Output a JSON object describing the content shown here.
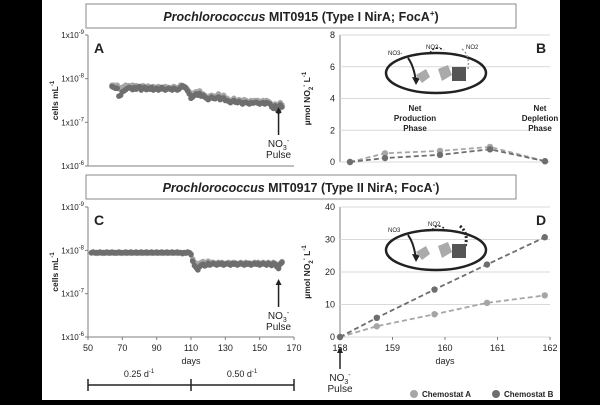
{
  "headers": {
    "top": {
      "name": "Prochlorococcus",
      "rest": " MIT0915 (Type I NirA; FocA",
      "sup": "+",
      "end": ")"
    },
    "bottom": {
      "name": "Prochlorococcus",
      "rest": " MIT0917 (Type II NirA; FocA",
      "sup": "-",
      "end": ")"
    }
  },
  "colors": {
    "chemostat_a": "#a6a6a6",
    "chemostat_b": "#6e6e6e",
    "axis": "#7f7f7f",
    "gridline": "#d9d9d9"
  },
  "chart_data": [
    {
      "panel": "A",
      "type": "scatter",
      "ylabel": "cells mL",
      "ylabel_sup": "-1",
      "ylog": true,
      "yticks": [
        {
          "base": "1x10",
          "exp": "-9"
        },
        {
          "base": "1x10",
          "exp": "-8"
        },
        {
          "base": "1x10",
          "exp": "-7"
        },
        {
          "base": "1x10",
          "exp": "-6"
        }
      ],
      "xlim": [
        50,
        170
      ],
      "ylim_log10_cells": [
        6,
        9
      ],
      "annotation": {
        "line1": "NO",
        "sub": "3",
        "sup": "-",
        "line2": "Pulse",
        "x": 161
      },
      "series": [
        {
          "name": "Chemostat A",
          "x": [
            64,
            65,
            66,
            67,
            68,
            69,
            70,
            71,
            72,
            73,
            74,
            75,
            76,
            77,
            78,
            79,
            80,
            81,
            82,
            83,
            84,
            85,
            86,
            87,
            88,
            89,
            90,
            91,
            92,
            93,
            94,
            95,
            96,
            97,
            98,
            99,
            100,
            101,
            102,
            103,
            104,
            105,
            106,
            107,
            108,
            109,
            110,
            111,
            112,
            113,
            114,
            115,
            116,
            117,
            118,
            119,
            120,
            121,
            122,
            123,
            124,
            125,
            126,
            127,
            128,
            129,
            130,
            131,
            132,
            133,
            134,
            135,
            136,
            137,
            138,
            139,
            140,
            141,
            142,
            143,
            144,
            145,
            146,
            147,
            148,
            149,
            150,
            151,
            152,
            153,
            154,
            155,
            156,
            157,
            158,
            159,
            160,
            161,
            162,
            163
          ],
          "y": [
            7.85,
            7.85,
            7.84,
            7.85,
            7.8,
            7.75,
            7.8,
            7.82,
            7.85,
            7.83,
            7.84,
            7.82,
            7.85,
            7.83,
            7.84,
            7.8,
            7.82,
            7.78,
            7.84,
            7.82,
            7.8,
            7.83,
            7.78,
            7.8,
            7.82,
            7.78,
            7.8,
            7.82,
            7.78,
            7.8,
            7.8,
            7.82,
            7.78,
            7.8,
            7.78,
            7.8,
            7.82,
            7.8,
            7.78,
            7.8,
            7.85,
            7.82,
            7.8,
            7.8,
            7.75,
            7.7,
            7.62,
            7.65,
            7.68,
            7.7,
            7.68,
            7.72,
            7.65,
            7.65,
            7.62,
            7.58,
            7.58,
            7.6,
            7.62,
            7.6,
            7.6,
            7.6,
            7.65,
            7.58,
            7.6,
            7.62,
            7.55,
            7.55,
            7.52,
            7.5,
            7.5,
            7.55,
            7.5,
            7.48,
            7.52,
            7.5,
            7.48,
            7.52,
            7.5,
            7.48,
            7.45,
            7.5,
            7.48,
            7.5,
            7.5,
            7.5,
            7.45,
            7.48,
            7.5,
            7.46,
            7.5,
            7.48,
            7.45,
            7.4,
            7.38,
            7.42,
            7.35,
            7.3,
            7.45,
            7.4
          ]
        },
        {
          "name": "Chemostat B",
          "x": [
            64,
            65,
            66,
            67,
            68,
            69,
            70,
            71,
            72,
            73,
            74,
            75,
            76,
            77,
            78,
            79,
            80,
            81,
            82,
            83,
            84,
            85,
            86,
            87,
            88,
            89,
            90,
            91,
            92,
            93,
            94,
            95,
            96,
            97,
            98,
            99,
            100,
            101,
            102,
            103,
            104,
            105,
            106,
            107,
            108,
            109,
            110,
            111,
            112,
            113,
            114,
            115,
            116,
            117,
            118,
            119,
            120,
            121,
            122,
            123,
            124,
            125,
            126,
            127,
            128,
            129,
            130,
            131,
            132,
            133,
            134,
            135,
            136,
            137,
            138,
            139,
            140,
            141,
            142,
            143,
            144,
            145,
            146,
            147,
            148,
            149,
            150,
            151,
            152,
            153,
            154,
            155,
            156,
            157,
            158,
            159,
            160,
            161,
            162,
            163
          ],
          "y": [
            7.82,
            7.8,
            7.78,
            7.78,
            7.6,
            7.62,
            7.7,
            7.72,
            7.75,
            7.78,
            7.8,
            7.78,
            7.75,
            7.8,
            7.76,
            7.8,
            7.82,
            7.74,
            7.78,
            7.8,
            7.75,
            7.78,
            7.76,
            7.8,
            7.74,
            7.76,
            7.78,
            7.74,
            7.76,
            7.8,
            7.76,
            7.74,
            7.76,
            7.78,
            7.76,
            7.74,
            7.78,
            7.76,
            7.74,
            7.76,
            7.8,
            7.84,
            7.82,
            7.78,
            7.72,
            7.65,
            7.55,
            7.58,
            7.62,
            7.65,
            7.62,
            7.66,
            7.6,
            7.62,
            7.58,
            7.55,
            7.52,
            7.55,
            7.58,
            7.55,
            7.54,
            7.56,
            7.58,
            7.52,
            7.55,
            7.56,
            7.5,
            7.5,
            7.48,
            7.45,
            7.48,
            7.5,
            7.46,
            7.45,
            7.48,
            7.46,
            7.42,
            7.45,
            7.46,
            7.44,
            7.42,
            7.45,
            7.44,
            7.45,
            7.46,
            7.44,
            7.42,
            7.44,
            7.45,
            7.42,
            7.45,
            7.44,
            7.42,
            7.35,
            7.32,
            7.38,
            7.3,
            7.25,
            7.4,
            7.35
          ]
        }
      ]
    },
    {
      "panel": "B",
      "type": "line",
      "ylabel": "µmol NO",
      "ylabel_sub": "2",
      "ylabel_sup": "-",
      "ylabel_tail": " L",
      "ylabel_sup2": "-1",
      "yticks": [
        0,
        2,
        4,
        6,
        8
      ],
      "ylim": [
        0,
        8
      ],
      "xlim": [
        157.8,
        162
      ],
      "annotations": [
        {
          "text": "Net",
          "text2": "Production",
          "text3": "Phase",
          "x": 159.3
        },
        {
          "text": "Net",
          "text2": "Depletion",
          "text3": "Phase",
          "x": 161.8
        }
      ],
      "series": [
        {
          "name": "Chemostat A",
          "x": [
            158,
            158.7,
            159.8,
            160.8,
            161.9
          ],
          "y": [
            0,
            0.55,
            0.7,
            0.95,
            0.05
          ]
        },
        {
          "name": "Chemostat B",
          "x": [
            158,
            158.7,
            159.8,
            160.8,
            161.9
          ],
          "y": [
            0,
            0.25,
            0.45,
            0.8,
            0.05
          ]
        }
      ]
    },
    {
      "panel": "C",
      "type": "scatter",
      "ylabel": "cells mL",
      "ylabel_sup": "-1",
      "ylog": true,
      "yticks": [
        {
          "base": "1x10",
          "exp": "-9"
        },
        {
          "base": "1x10",
          "exp": "-8"
        },
        {
          "base": "1x10",
          "exp": "-7"
        },
        {
          "base": "1x10",
          "exp": "-6"
        }
      ],
      "xticks": [
        50,
        70,
        90,
        110,
        130,
        150,
        170
      ],
      "xlabel": "days",
      "xlim": [
        50,
        170
      ],
      "ylim_log10_cells": [
        6,
        9
      ],
      "annotation": {
        "line1": "NO",
        "sub": "3",
        "sup": "-",
        "line2": "Pulse",
        "x": 161
      },
      "series": [
        {
          "name": "Chemostat A",
          "x": [
            52,
            53,
            54,
            55,
            56,
            57,
            58,
            59,
            60,
            61,
            62,
            63,
            64,
            65,
            66,
            67,
            68,
            69,
            70,
            71,
            72,
            73,
            74,
            75,
            76,
            77,
            78,
            79,
            80,
            81,
            82,
            83,
            84,
            85,
            86,
            87,
            88,
            89,
            90,
            91,
            92,
            93,
            94,
            95,
            96,
            97,
            98,
            99,
            100,
            101,
            102,
            103,
            104,
            105,
            106,
            107,
            108,
            109,
            110,
            111,
            112,
            113,
            114,
            115,
            116,
            117,
            118,
            119,
            120,
            121,
            122,
            123,
            124,
            125,
            126,
            127,
            128,
            129,
            130,
            131,
            132,
            133,
            134,
            135,
            136,
            137,
            138,
            139,
            140,
            141,
            142,
            143,
            144,
            145,
            146,
            147,
            148,
            149,
            150,
            151,
            152,
            153,
            154,
            155,
            156,
            157,
            158,
            159,
            160,
            161,
            162,
            163
          ],
          "y": [
            7.95,
            7.95,
            7.95,
            7.93,
            7.95,
            7.94,
            7.95,
            7.93,
            7.95,
            7.94,
            7.95,
            7.93,
            7.94,
            7.95,
            7.93,
            7.95,
            7.94,
            7.93,
            7.95,
            7.94,
            7.93,
            7.95,
            7.94,
            7.93,
            7.95,
            7.94,
            7.93,
            7.95,
            7.94,
            7.93,
            7.95,
            7.94,
            7.93,
            7.95,
            7.94,
            7.93,
            7.95,
            7.94,
            7.93,
            7.95,
            7.94,
            7.93,
            7.95,
            7.94,
            7.93,
            7.95,
            7.94,
            7.93,
            7.95,
            7.94,
            7.93,
            7.95,
            7.94,
            7.92,
            7.94,
            7.93,
            7.95,
            7.94,
            7.92,
            7.8,
            7.72,
            7.7,
            7.65,
            7.7,
            7.72,
            7.74,
            7.7,
            7.72,
            7.75,
            7.7,
            7.72,
            7.72,
            7.7,
            7.7,
            7.72,
            7.7,
            7.72,
            7.7,
            7.68,
            7.7,
            7.72,
            7.7,
            7.7,
            7.72,
            7.7,
            7.68,
            7.7,
            7.72,
            7.7,
            7.7,
            7.72,
            7.7,
            7.7,
            7.68,
            7.7,
            7.72,
            7.7,
            7.72,
            7.7,
            7.7,
            7.72,
            7.7,
            7.68,
            7.72,
            7.7,
            7.68,
            7.72,
            7.7,
            7.66,
            7.62,
            7.7,
            7.74
          ]
        },
        {
          "name": "Chemostat B",
          "x": [
            52,
            53,
            54,
            55,
            56,
            57,
            58,
            59,
            60,
            61,
            62,
            63,
            64,
            65,
            66,
            67,
            68,
            69,
            70,
            71,
            72,
            73,
            74,
            75,
            76,
            77,
            78,
            79,
            80,
            81,
            82,
            83,
            84,
            85,
            86,
            87,
            88,
            89,
            90,
            91,
            92,
            93,
            94,
            95,
            96,
            97,
            98,
            99,
            100,
            101,
            102,
            103,
            104,
            105,
            106,
            107,
            108,
            109,
            110,
            111,
            112,
            113,
            114,
            115,
            116,
            117,
            118,
            119,
            120,
            121,
            122,
            123,
            124,
            125,
            126,
            127,
            128,
            129,
            130,
            131,
            132,
            133,
            134,
            135,
            136,
            137,
            138,
            139,
            140,
            141,
            142,
            143,
            144,
            145,
            146,
            147,
            148,
            149,
            150,
            151,
            152,
            153,
            154,
            155,
            156,
            157,
            158,
            159,
            160,
            161,
            162,
            163
          ],
          "y": [
            7.94,
            7.96,
            7.94,
            7.95,
            7.94,
            7.96,
            7.94,
            7.95,
            7.94,
            7.96,
            7.94,
            7.95,
            7.96,
            7.94,
            7.95,
            7.94,
            7.96,
            7.95,
            7.94,
            7.95,
            7.96,
            7.94,
            7.95,
            7.96,
            7.94,
            7.95,
            7.96,
            7.94,
            7.95,
            7.96,
            7.94,
            7.95,
            7.96,
            7.94,
            7.95,
            7.96,
            7.94,
            7.95,
            7.96,
            7.94,
            7.95,
            7.96,
            7.94,
            7.95,
            7.96,
            7.94,
            7.95,
            7.96,
            7.94,
            7.95,
            7.96,
            7.94,
            7.95,
            7.93,
            7.95,
            7.94,
            7.96,
            7.95,
            7.9,
            7.75,
            7.65,
            7.6,
            7.55,
            7.62,
            7.66,
            7.68,
            7.64,
            7.66,
            7.7,
            7.66,
            7.68,
            7.7,
            7.68,
            7.66,
            7.7,
            7.68,
            7.7,
            7.66,
            7.68,
            7.7,
            7.68,
            7.66,
            7.7,
            7.68,
            7.7,
            7.66,
            7.68,
            7.7,
            7.68,
            7.66,
            7.7,
            7.68,
            7.7,
            7.66,
            7.68,
            7.7,
            7.68,
            7.7,
            7.66,
            7.68,
            7.7,
            7.68,
            7.66,
            7.7,
            7.68,
            7.65,
            7.7,
            7.68,
            7.62,
            7.58,
            7.68,
            7.72
          ]
        }
      ]
    },
    {
      "panel": "D",
      "type": "line",
      "ylabel": "µmol NO",
      "ylabel_sub": "2",
      "ylabel_sup": "-",
      "ylabel_tail": " L",
      "ylabel_sup2": "-1",
      "yticks": [
        0,
        10,
        20,
        30,
        40
      ],
      "ylim": [
        0,
        40
      ],
      "xticks": [
        158,
        159,
        160,
        161,
        162
      ],
      "xlabel": "days",
      "xlim": [
        158,
        162
      ],
      "annotation": {
        "line1": "NO",
        "sub": "3",
        "sup": "-",
        "line2": "Pulse",
        "x": 158
      },
      "series": [
        {
          "name": "Chemostat A",
          "x": [
            158,
            158.7,
            159.8,
            160.8,
            161.9
          ],
          "y": [
            0,
            3.3,
            7,
            10.5,
            12.8
          ]
        },
        {
          "name": "Chemostat B",
          "x": [
            158,
            158.7,
            159.8,
            160.8,
            161.9
          ],
          "y": [
            0,
            5.9,
            14.6,
            22.3,
            30.7
          ]
        }
      ]
    }
  ],
  "dilution": {
    "rate1": "0.25 d",
    "rate1_sup": "-1",
    "rate2": "0.50 d",
    "rate2_sup": "-1"
  },
  "legend": {
    "a": "Chemostat A",
    "b": "Chemostat B"
  }
}
